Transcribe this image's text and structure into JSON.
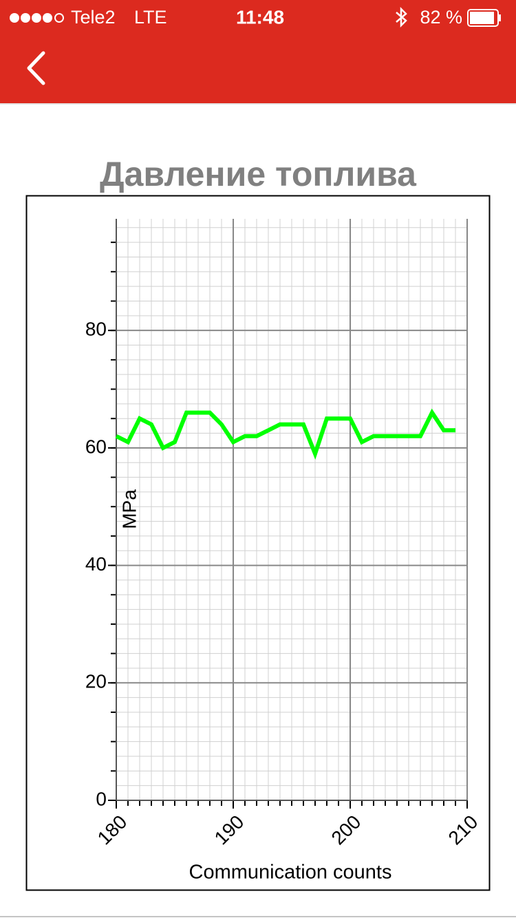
{
  "status_bar": {
    "carrier": "Tele2",
    "network": "LTE",
    "time": "11:48",
    "battery": "82 %"
  },
  "chart_data": {
    "type": "line",
    "title": "Давление топлива",
    "xlabel": "Communication counts",
    "ylabel": "MPa",
    "x": [
      180,
      181,
      182,
      183,
      184,
      185,
      186,
      187,
      188,
      189,
      190,
      191,
      192,
      193,
      194,
      195,
      196,
      197,
      198,
      199,
      200,
      201,
      202,
      203,
      204,
      205,
      206,
      207,
      208,
      209
    ],
    "values": [
      62,
      61,
      65,
      64,
      60,
      61,
      66,
      66,
      66,
      64,
      61,
      62,
      62,
      63,
      64,
      64,
      64,
      59,
      65,
      65,
      65,
      61,
      62,
      62,
      62,
      62,
      62,
      66,
      63,
      63
    ],
    "color": "#00ff00",
    "xlim": [
      180,
      210
    ],
    "ylim": [
      0,
      99
    ],
    "xticks": [
      180,
      190,
      200,
      210
    ],
    "yticks": [
      0,
      20,
      40,
      60,
      80
    ],
    "grid": true
  }
}
